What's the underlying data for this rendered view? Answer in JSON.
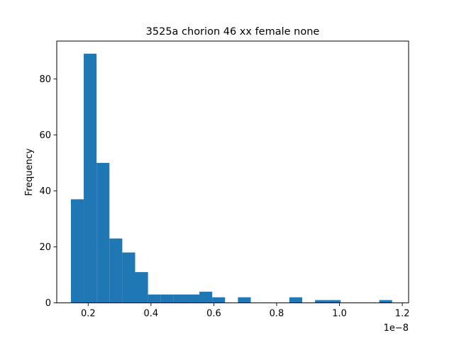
{
  "chart_data": {
    "type": "bar",
    "title": "3525a chorion 46 xx female none",
    "xlabel": "",
    "ylabel": "Frequency",
    "x_offset_label": "1e−8",
    "xlim": [
      0.1,
      1.22
    ],
    "ylim": [
      0,
      93.5
    ],
    "x_ticks": [
      0.2,
      0.4,
      0.6,
      0.8,
      1.0,
      1.2
    ],
    "x_tick_labels": [
      "0.2",
      "0.4",
      "0.6",
      "0.8",
      "1.0",
      "1.2"
    ],
    "y_ticks": [
      0,
      20,
      40,
      60,
      80
    ],
    "y_tick_labels": [
      "0",
      "20",
      "40",
      "60",
      "80"
    ],
    "grid": false,
    "bar_color": "#1f77b4",
    "bins": {
      "start": 0.145,
      "width": 0.0409
    },
    "values": [
      37,
      89,
      50,
      23,
      18,
      11,
      3,
      3,
      3,
      3,
      4,
      2,
      0,
      2,
      0,
      0,
      0,
      2,
      0,
      1,
      1,
      0,
      0,
      0,
      1
    ]
  }
}
